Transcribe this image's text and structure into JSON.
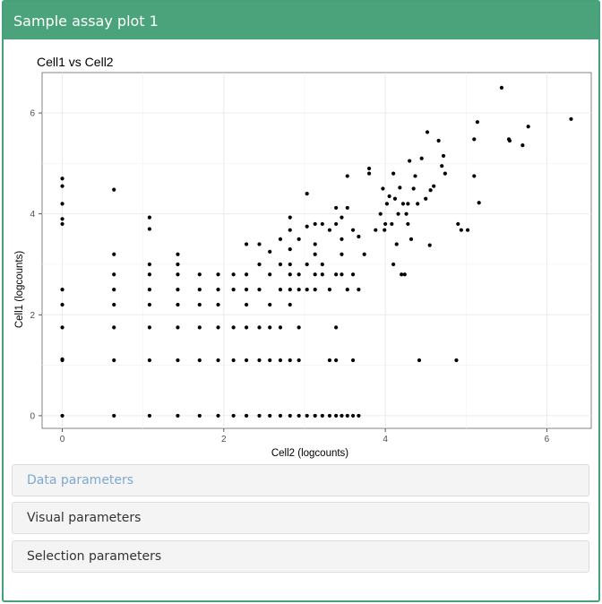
{
  "panel": {
    "title": "Sample assay plot 1",
    "header_color": "#4aa37b",
    "border_color": "#46a078"
  },
  "sections": [
    {
      "label": "Data parameters",
      "active": true
    },
    {
      "label": "Visual parameters",
      "active": false
    },
    {
      "label": "Selection parameters",
      "active": false
    }
  ],
  "chart_data": {
    "type": "scatter",
    "title": "Cell1 vs Cell2",
    "xlabel": "Cell2 (logcounts)",
    "ylabel": "Cell1 (logcounts)",
    "xlim": [
      -0.25,
      6.55
    ],
    "ylim": [
      -0.25,
      6.8
    ],
    "xticks": [
      0,
      2,
      4,
      6
    ],
    "yticks": [
      0,
      2,
      4,
      6
    ],
    "grid": true,
    "point_color": "#000000",
    "points": [
      [
        0,
        0
      ],
      [
        0,
        1.1
      ],
      [
        0,
        1.12
      ],
      [
        0,
        1.75
      ],
      [
        0,
        2.2
      ],
      [
        0,
        2.5
      ],
      [
        0,
        3.8
      ],
      [
        0,
        3.9
      ],
      [
        0,
        4.2
      ],
      [
        0,
        4.55
      ],
      [
        0,
        4.7
      ],
      [
        0.64,
        0
      ],
      [
        0.64,
        1.1
      ],
      [
        0.64,
        1.75
      ],
      [
        0.64,
        2.2
      ],
      [
        0.64,
        2.5
      ],
      [
        0.64,
        2.8
      ],
      [
        0.64,
        3.2
      ],
      [
        0.64,
        4.48
      ],
      [
        1.08,
        0
      ],
      [
        1.08,
        1.1
      ],
      [
        1.08,
        1.75
      ],
      [
        1.08,
        2.2
      ],
      [
        1.08,
        2.5
      ],
      [
        1.08,
        2.8
      ],
      [
        1.08,
        3.0
      ],
      [
        1.08,
        3.7
      ],
      [
        1.08,
        3.93
      ],
      [
        1.43,
        0
      ],
      [
        1.43,
        1.1
      ],
      [
        1.43,
        1.75
      ],
      [
        1.43,
        2.2
      ],
      [
        1.43,
        2.5
      ],
      [
        1.43,
        2.8
      ],
      [
        1.43,
        3.0
      ],
      [
        1.43,
        3.2
      ],
      [
        1.7,
        0
      ],
      [
        1.7,
        1.1
      ],
      [
        1.7,
        1.75
      ],
      [
        1.7,
        2.2
      ],
      [
        1.7,
        2.5
      ],
      [
        1.7,
        2.8
      ],
      [
        1.93,
        0
      ],
      [
        1.93,
        1.1
      ],
      [
        1.93,
        1.75
      ],
      [
        1.93,
        2.2
      ],
      [
        1.93,
        2.5
      ],
      [
        1.93,
        2.8
      ],
      [
        2.12,
        0
      ],
      [
        2.12,
        1.1
      ],
      [
        2.12,
        1.75
      ],
      [
        2.12,
        2.5
      ],
      [
        2.12,
        2.8
      ],
      [
        2.28,
        0
      ],
      [
        2.28,
        1.1
      ],
      [
        2.28,
        1.75
      ],
      [
        2.28,
        2.2
      ],
      [
        2.28,
        2.5
      ],
      [
        2.28,
        2.8
      ],
      [
        2.28,
        3.4
      ],
      [
        2.44,
        0
      ],
      [
        2.44,
        1.1
      ],
      [
        2.44,
        1.75
      ],
      [
        2.44,
        2.5
      ],
      [
        2.44,
        3.0
      ],
      [
        2.44,
        3.4
      ],
      [
        2.57,
        0
      ],
      [
        2.57,
        1.1
      ],
      [
        2.57,
        1.75
      ],
      [
        2.57,
        2.2
      ],
      [
        2.57,
        2.8
      ],
      [
        2.57,
        3.25
      ],
      [
        2.7,
        0
      ],
      [
        2.7,
        1.1
      ],
      [
        2.7,
        1.75
      ],
      [
        2.7,
        2.5
      ],
      [
        2.7,
        3.0
      ],
      [
        2.7,
        3.5
      ],
      [
        2.82,
        0
      ],
      [
        2.82,
        1.1
      ],
      [
        2.82,
        2.2
      ],
      [
        2.82,
        2.5
      ],
      [
        2.82,
        2.8
      ],
      [
        2.82,
        3.0
      ],
      [
        2.82,
        3.3
      ],
      [
        2.82,
        3.68
      ],
      [
        2.82,
        3.93
      ],
      [
        2.93,
        0
      ],
      [
        2.93,
        1.1
      ],
      [
        2.93,
        1.75
      ],
      [
        2.93,
        2.5
      ],
      [
        2.93,
        2.8
      ],
      [
        2.93,
        3.5
      ],
      [
        3.03,
        0
      ],
      [
        3.03,
        2.5
      ],
      [
        3.03,
        3.0
      ],
      [
        3.03,
        3.75
      ],
      [
        3.03,
        4.4
      ],
      [
        3.13,
        0
      ],
      [
        3.13,
        2.5
      ],
      [
        3.13,
        2.8
      ],
      [
        3.13,
        3.2
      ],
      [
        3.13,
        3.4
      ],
      [
        3.13,
        3.8
      ],
      [
        3.22,
        0
      ],
      [
        3.22,
        2.8
      ],
      [
        3.22,
        3.0
      ],
      [
        3.22,
        3.8
      ],
      [
        3.31,
        0
      ],
      [
        3.31,
        1.1
      ],
      [
        3.31,
        2.5
      ],
      [
        3.31,
        3.68
      ],
      [
        3.39,
        0
      ],
      [
        3.39,
        1.1
      ],
      [
        3.39,
        1.75
      ],
      [
        3.39,
        2.8
      ],
      [
        3.39,
        3.8
      ],
      [
        3.39,
        4.12
      ],
      [
        3.46,
        0
      ],
      [
        3.46,
        2.8
      ],
      [
        3.46,
        3.2
      ],
      [
        3.46,
        3.5
      ],
      [
        3.46,
        3.93
      ],
      [
        3.53,
        0
      ],
      [
        3.53,
        2.5
      ],
      [
        3.53,
        4.12
      ],
      [
        3.53,
        4.75
      ],
      [
        3.6,
        0
      ],
      [
        3.6,
        1.1
      ],
      [
        3.6,
        2.8
      ],
      [
        3.6,
        3.68
      ],
      [
        3.67,
        0
      ],
      [
        3.67,
        2.5
      ],
      [
        3.67,
        3.55
      ],
      [
        3.74,
        3.2
      ],
      [
        3.8,
        4.9
      ],
      [
        3.8,
        4.8
      ],
      [
        3.88,
        3.68
      ],
      [
        3.94,
        4.0
      ],
      [
        3.97,
        4.5
      ],
      [
        3.99,
        3.68
      ],
      [
        4.0,
        3.8
      ],
      [
        4.02,
        4.2
      ],
      [
        4.05,
        4.35
      ],
      [
        4.08,
        3.8
      ],
      [
        4.1,
        3.0
      ],
      [
        4.1,
        4.8
      ],
      [
        4.12,
        4.3
      ],
      [
        4.14,
        3.4
      ],
      [
        4.16,
        4.0
      ],
      [
        4.18,
        4.52
      ],
      [
        4.2,
        2.8
      ],
      [
        4.24,
        2.8
      ],
      [
        4.22,
        4.2
      ],
      [
        4.26,
        4.0
      ],
      [
        4.28,
        3.8
      ],
      [
        4.28,
        4.2
      ],
      [
        4.3,
        5.05
      ],
      [
        4.32,
        3.5
      ],
      [
        4.35,
        4.5
      ],
      [
        4.37,
        4.75
      ],
      [
        4.4,
        4.2
      ],
      [
        4.42,
        1.1
      ],
      [
        4.45,
        5.1
      ],
      [
        4.5,
        4.3
      ],
      [
        4.52,
        5.62
      ],
      [
        4.56,
        4.47
      ],
      [
        4.6,
        4.55
      ],
      [
        4.66,
        5.45
      ],
      [
        4.7,
        4.95
      ],
      [
        4.72,
        5.15
      ],
      [
        4.74,
        4.8
      ],
      [
        4.55,
        3.38
      ],
      [
        4.88,
        1.1
      ],
      [
        4.9,
        3.8
      ],
      [
        4.94,
        3.68
      ],
      [
        5.02,
        3.68
      ],
      [
        5.1,
        4.75
      ],
      [
        5.1,
        5.48
      ],
      [
        5.14,
        5.82
      ],
      [
        5.16,
        4.22
      ],
      [
        5.44,
        6.5
      ],
      [
        5.53,
        5.48
      ],
      [
        5.54,
        5.45
      ],
      [
        5.7,
        5.36
      ],
      [
        5.77,
        5.73
      ],
      [
        6.3,
        5.88
      ]
    ]
  }
}
